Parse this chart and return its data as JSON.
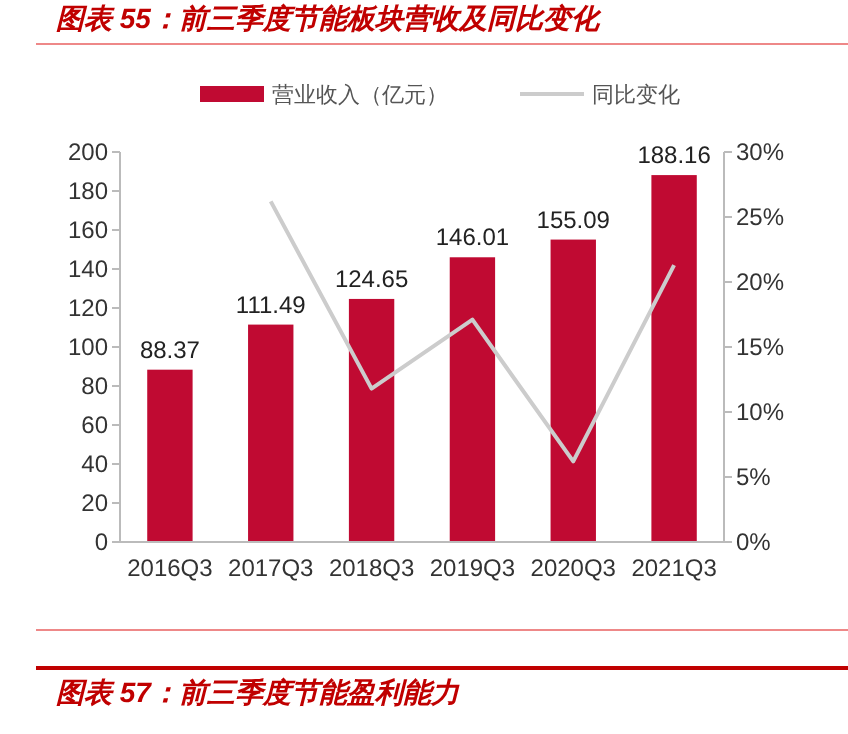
{
  "chart_data": {
    "type": "bar",
    "title": "图表 55：前三季度节能板块营收及同比变化",
    "categories": [
      "2016Q3",
      "2017Q3",
      "2018Q3",
      "2019Q3",
      "2020Q3",
      "2021Q3"
    ],
    "series": [
      {
        "name": "营业收入（亿元）",
        "color": "#c00a32",
        "values": [
          88.37,
          111.49,
          124.65,
          146.01,
          155.09,
          188.16
        ],
        "value_labels": [
          "88.37",
          "111.49",
          "124.65",
          "146.01",
          "155.09",
          "188.16"
        ]
      },
      {
        "name": "同比变化",
        "type": "line",
        "axis": "y2",
        "color": "#cccccc",
        "values": [
          null,
          26.2,
          11.8,
          17.1,
          6.2,
          21.3
        ]
      }
    ],
    "ylim": [
      0,
      200
    ],
    "yticks": [
      0,
      20,
      40,
      60,
      80,
      100,
      120,
      140,
      160,
      180,
      200
    ],
    "y2lim": [
      0,
      30
    ],
    "y2ticks": [
      {
        "value": 0,
        "label": "0%"
      },
      {
        "value": 5,
        "label": "5%"
      },
      {
        "value": 10,
        "label": "10%"
      },
      {
        "value": 15,
        "label": "15%"
      },
      {
        "value": 20,
        "label": "20%"
      },
      {
        "value": 25,
        "label": "25%"
      },
      {
        "value": 30,
        "label": "30%"
      }
    ],
    "legend": "top",
    "grid": false,
    "marker": "none",
    "line_style": "solid",
    "annotations": [
      "图表 57：前三季度节能盈利能力"
    ]
  }
}
